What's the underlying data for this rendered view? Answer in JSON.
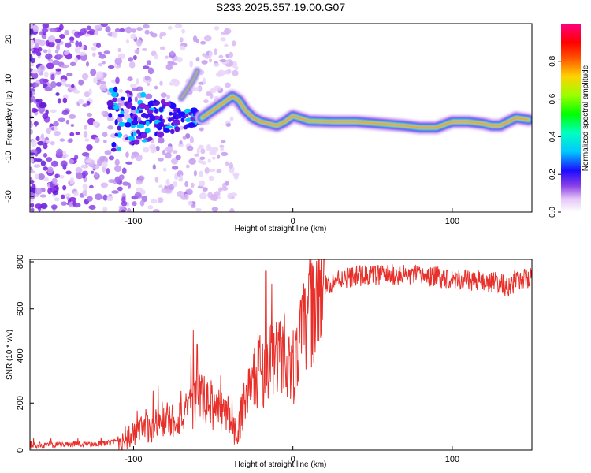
{
  "chart_data": [
    {
      "type": "heatmap",
      "title": "S233.2025.357.19.00.G07",
      "xlabel": "Height of straight line (km)",
      "ylabel": "Frequency (Hz)",
      "xlim": [
        -165,
        150
      ],
      "ylim": [
        -24,
        24
      ],
      "xticks": [
        -100,
        0,
        100
      ],
      "yticks": [
        -20,
        -10,
        0,
        10,
        20
      ],
      "colorbar": {
        "label": "Normalized spectral amplitude",
        "range": [
          0,
          1
        ],
        "ticks": [
          "0.0",
          "0.2",
          "0.4",
          "0.6",
          "0.8"
        ]
      },
      "ridge": {
        "x": [
          -57,
          -50,
          -43,
          -38,
          -34,
          -30,
          -25,
          -20,
          -15,
          -10,
          -5,
          0,
          10,
          25,
          40,
          55,
          70,
          80,
          90,
          100,
          110,
          120,
          125,
          130,
          140,
          148
        ],
        "y": [
          0,
          2,
          4,
          5.5,
          4.5,
          2,
          0,
          -1,
          -1.5,
          -2,
          -1,
          0.5,
          -0.8,
          -1,
          -1,
          -1.5,
          -2,
          -2.5,
          -2.5,
          -1,
          -1,
          -1.5,
          -2,
          -2,
          0,
          -0.5
        ]
      },
      "branch": {
        "x": [
          -70,
          -65,
          -62,
          -60
        ],
        "y": [
          5,
          8,
          10,
          12
        ]
      }
    },
    {
      "type": "line",
      "xlabel": "Height of straight line (km)",
      "ylabel": "SNR (10 * v/v)",
      "xlim": [
        -165,
        150
      ],
      "ylim": [
        0,
        810
      ],
      "xticks": [
        -100,
        0,
        100
      ],
      "yticks": [
        0,
        200,
        400,
        600,
        800
      ],
      "color": "#e8302b",
      "series": [
        {
          "name": "SNR",
          "x": [
            -165,
            -150,
            -130,
            -115,
            -105,
            -95,
            -85,
            -75,
            -65,
            -60,
            -50,
            -40,
            -35,
            -30,
            -25,
            -20,
            -17,
            -14,
            -10,
            -5,
            0,
            5,
            10,
            15,
            20,
            30,
            40,
            60,
            80,
            100,
            120,
            130,
            135,
            140,
            150
          ],
          "y": [
            20,
            22,
            25,
            30,
            50,
            80,
            110,
            130,
            160,
            230,
            180,
            150,
            60,
            230,
            280,
            360,
            300,
            420,
            380,
            430,
            300,
            480,
            560,
            650,
            700,
            730,
            740,
            745,
            740,
            730,
            715,
            710,
            690,
            720,
            730
          ]
        }
      ]
    }
  ]
}
